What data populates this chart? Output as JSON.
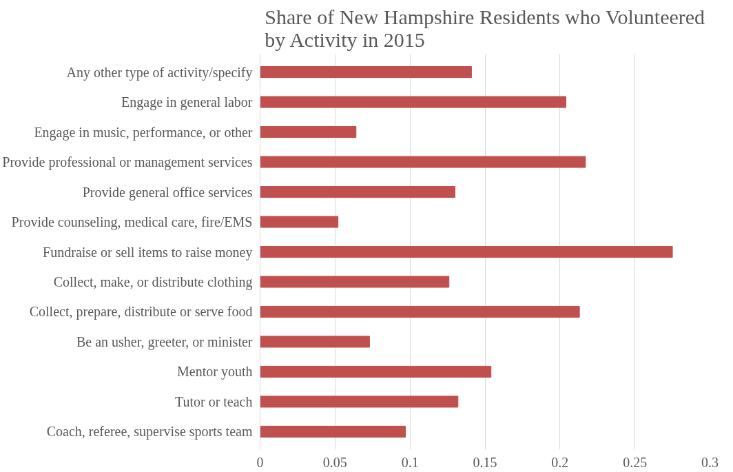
{
  "chart_data": {
    "type": "bar",
    "orientation": "horizontal",
    "title": "Share of New Hampshire Residents who Volunteered\nby Activity in 2015",
    "categories": [
      "Any other type of activity/specify",
      "Engage in general labor",
      "Engage in music, performance, or other",
      "Provide professional or management services",
      "Provide general office services",
      "Provide counseling, medical care, fire/EMS",
      "Fundraise or sell items to raise money",
      "Collect, make, or distribute clothing",
      "Collect, prepare, distribute or serve food",
      "Be an usher, greeter, or minister",
      "Mentor youth",
      "Tutor or teach",
      "Coach, referee, supervise sports team"
    ],
    "values": [
      0.141,
      0.204,
      0.064,
      0.217,
      0.13,
      0.052,
      0.275,
      0.126,
      0.213,
      0.073,
      0.154,
      0.132,
      0.097
    ],
    "color": "#c0504d",
    "xlim": [
      0,
      0.3
    ],
    "xticks": [
      0,
      0.05,
      0.1,
      0.15,
      0.2,
      0.25,
      0.3
    ],
    "grid": "x"
  }
}
